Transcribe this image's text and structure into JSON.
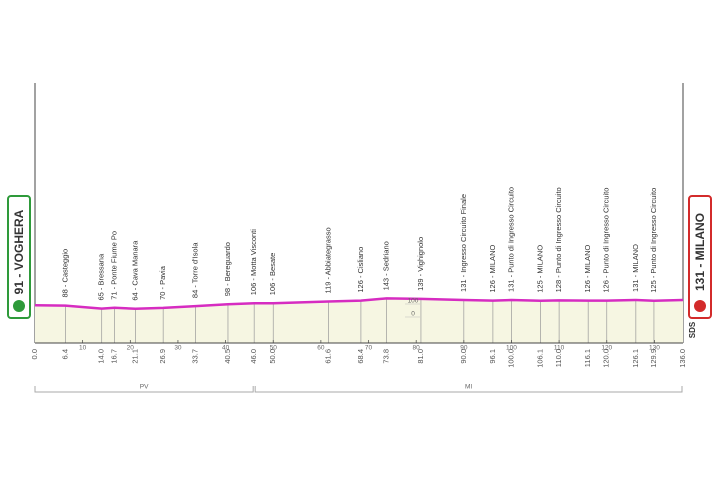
{
  "chart_data": {
    "type": "area",
    "start_label": "91 - VOGHERA",
    "finish_label": "131 - MILANO",
    "watermark": "SDS",
    "color": "#d62cc1",
    "fill": "#f6f6e2",
    "x": [
      0,
      6.4,
      14.0,
      16.7,
      21.1,
      26.9,
      33.7,
      40.5,
      46.0,
      50.0,
      61.6,
      68.4,
      73.8,
      81.0,
      90.0,
      96.1,
      100.0,
      106.1,
      110.0,
      116.1,
      120.0,
      126.1,
      129.9,
      136.0
    ],
    "x_labels": [
      "0.0",
      "6.4",
      "14.0",
      "16.7",
      "21.1",
      "26.9",
      "33.7",
      "40.5",
      "46.0",
      "50.0",
      "61.6",
      "68.4",
      "73.8",
      "81.0",
      "90.0",
      "96.1",
      "100.0",
      "106.1",
      "110.0",
      "116.1",
      "120.0",
      "126.1",
      "129.9",
      "136.0"
    ],
    "values": [
      91,
      88,
      65,
      71,
      64,
      70,
      84,
      98,
      106,
      106,
      119,
      126,
      143,
      139,
      131,
      126,
      131,
      125,
      128,
      126,
      126,
      131,
      125,
      131
    ],
    "point_labels": [
      null,
      "88 - Casteggio",
      "65 - Bressana",
      "71 - Ponte Fiume Po",
      "64 - Cava Manara",
      "70 - Pavia",
      "84 - Torre d'Isola",
      "98 - Bereguardo",
      "106 - Motta Visconti",
      "106 - Besate",
      "119 - Abbiategrasso",
      "126 - Cisliano",
      "143 - Sedriano",
      "139 - Vighignolo",
      "131 - Ingresso Circuito Finale",
      "126 - MILANO",
      "131 - Punto di Ingresso Circuito",
      "125 - MILANO",
      "128 - Punto di Ingresso Circuito",
      "126 - MILANO",
      "126 - Punto di Ingresso Circuito",
      "131 - MILANO",
      "125 - Punto di Ingresso Circuito",
      null
    ],
    "xlim": [
      0,
      136
    ],
    "xticks": [
      10,
      20,
      30,
      40,
      50,
      60,
      70,
      80,
      90,
      100,
      110,
      120,
      130
    ],
    "ylim": [
      -200,
      1800
    ],
    "yticks": [
      0,
      100
    ],
    "provinces": [
      {
        "label": "PV",
        "start": 0,
        "end": 46
      },
      {
        "label": "MI",
        "start": 46,
        "end": 136
      }
    ]
  }
}
